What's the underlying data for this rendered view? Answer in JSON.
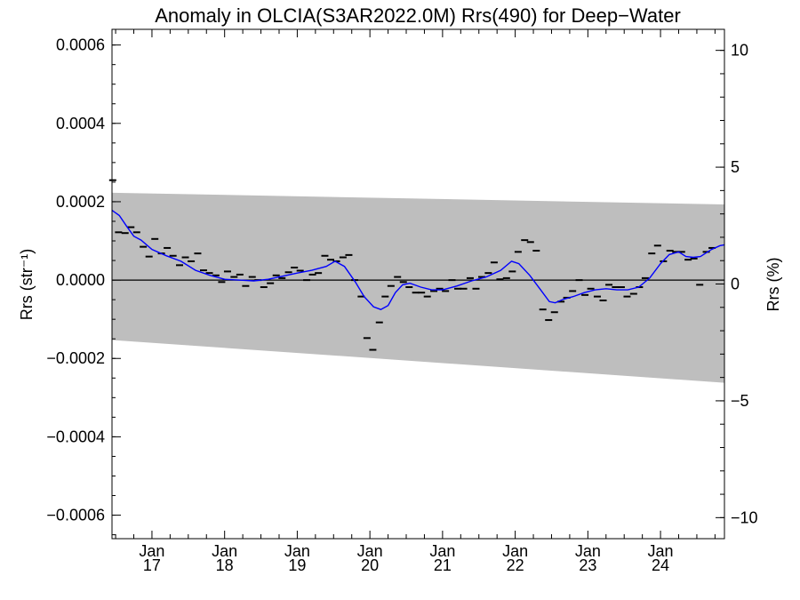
{
  "chart_data": {
    "type": "line",
    "title": "Anomaly in OLCIA(S3AR2022.0M) Rrs(490) for Deep−Water",
    "ylabel_left": "Rrs (str⁻¹)",
    "ylabel_right": "Rrs (%)",
    "xlim": [
      2016.45,
      2024.88
    ],
    "ylim_left": [
      -0.00066,
      0.00064
    ],
    "ylim_right": [
      -10.9,
      10.9
    ],
    "x_ticks": [
      {
        "x": 2017.0,
        "line1": "Jan",
        "line2": "17"
      },
      {
        "x": 2018.0,
        "line1": "Jan",
        "line2": "18"
      },
      {
        "x": 2019.0,
        "line1": "Jan",
        "line2": "19"
      },
      {
        "x": 2020.0,
        "line1": "Jan",
        "line2": "20"
      },
      {
        "x": 2021.0,
        "line1": "Jan",
        "line2": "21"
      },
      {
        "x": 2022.0,
        "line1": "Jan",
        "line2": "22"
      },
      {
        "x": 2023.0,
        "line1": "Jan",
        "line2": "23"
      },
      {
        "x": 2024.0,
        "line1": "Jan",
        "line2": "24"
      }
    ],
    "y_ticks_left": [
      {
        "v": 0.0006,
        "label": "0.0006"
      },
      {
        "v": 0.0004,
        "label": "0.0004"
      },
      {
        "v": 0.0002,
        "label": "0.0002"
      },
      {
        "v": 0.0,
        "label": "0.0000"
      },
      {
        "v": -0.0002,
        "label": "−0.0002"
      },
      {
        "v": -0.0004,
        "label": "−0.0004"
      },
      {
        "v": -0.0006,
        "label": "−0.0006"
      }
    ],
    "y_ticks_right": [
      {
        "v": 10,
        "label": "10"
      },
      {
        "v": 5,
        "label": "5"
      },
      {
        "v": 0,
        "label": "0"
      },
      {
        "v": -5,
        "label": "−5"
      },
      {
        "v": -10,
        "label": "−10"
      }
    ],
    "band": {
      "x": [
        2016.45,
        2024.88
      ],
      "upper": [
        0.000223,
        0.000193
      ],
      "lower": [
        -0.000153,
        -0.000262
      ],
      "color": "#bebebe"
    },
    "zero_line": true,
    "series": [
      {
        "kind": "monthly-anomaly",
        "color": "#000000",
        "points": [
          [
            2016.46,
            0.000255
          ],
          [
            2016.54,
            0.000122
          ],
          [
            2016.63,
            0.00012
          ],
          [
            2016.71,
            0.000135
          ],
          [
            2016.79,
            0.000122
          ],
          [
            2016.88,
            8.5e-05
          ],
          [
            2016.96,
            6e-05
          ],
          [
            2017.04,
            0.000105
          ],
          [
            2017.13,
            6.8e-05
          ],
          [
            2017.21,
            8.2e-05
          ],
          [
            2017.29,
            6.2e-05
          ],
          [
            2017.38,
            3.8e-05
          ],
          [
            2017.46,
            5.8e-05
          ],
          [
            2017.54,
            4.8e-05
          ],
          [
            2017.63,
            6.8e-05
          ],
          [
            2017.71,
            2.5e-05
          ],
          [
            2017.79,
            1.8e-05
          ],
          [
            2017.88,
            1.2e-05
          ],
          [
            2017.96,
            -5e-06
          ],
          [
            2018.04,
            2.2e-05
          ],
          [
            2018.13,
            8e-06
          ],
          [
            2018.21,
            1.4e-05
          ],
          [
            2018.29,
            -1.5e-05
          ],
          [
            2018.38,
            8e-06
          ],
          [
            2018.46,
            0.0
          ],
          [
            2018.54,
            -1.8e-05
          ],
          [
            2018.63,
            -8e-06
          ],
          [
            2018.71,
            1.2e-05
          ],
          [
            2018.79,
            5e-06
          ],
          [
            2018.88,
            2e-05
          ],
          [
            2018.96,
            3.2e-05
          ],
          [
            2019.04,
            2.4e-05
          ],
          [
            2019.13,
            0.0
          ],
          [
            2019.21,
            1.4e-05
          ],
          [
            2019.29,
            1.8e-05
          ],
          [
            2019.38,
            6.2e-05
          ],
          [
            2019.46,
            5.2e-05
          ],
          [
            2019.54,
            4.8e-05
          ],
          [
            2019.63,
            5.8e-05
          ],
          [
            2019.71,
            6.4e-05
          ],
          [
            2019.79,
            0.0
          ],
          [
            2019.88,
            -4.2e-05
          ],
          [
            2019.96,
            -0.000148
          ],
          [
            2020.04,
            -0.000178
          ],
          [
            2020.13,
            -0.000108
          ],
          [
            2020.21,
            -4.2e-05
          ],
          [
            2020.29,
            -1.5e-05
          ],
          [
            2020.38,
            8e-06
          ],
          [
            2020.46,
            -5e-06
          ],
          [
            2020.54,
            -1.8e-05
          ],
          [
            2020.63,
            -3.2e-05
          ],
          [
            2020.71,
            -3.2e-05
          ],
          [
            2020.79,
            -4.2e-05
          ],
          [
            2020.88,
            -2.8e-05
          ],
          [
            2020.96,
            -2.2e-05
          ],
          [
            2021.04,
            -2.8e-05
          ],
          [
            2021.13,
            0.0
          ],
          [
            2021.21,
            -2.2e-05
          ],
          [
            2021.29,
            -2.2e-05
          ],
          [
            2021.38,
            5e-06
          ],
          [
            2021.46,
            -2.2e-05
          ],
          [
            2021.54,
            8e-06
          ],
          [
            2021.63,
            1.8e-05
          ],
          [
            2021.71,
            4.5e-05
          ],
          [
            2021.79,
            2e-06
          ],
          [
            2021.88,
            5e-06
          ],
          [
            2021.96,
            2.2e-05
          ],
          [
            2022.04,
            7.2e-05
          ],
          [
            2022.13,
            0.000102
          ],
          [
            2022.21,
            9.7e-05
          ],
          [
            2022.29,
            7.5e-05
          ],
          [
            2022.38,
            -7.5e-05
          ],
          [
            2022.46,
            -0.000102
          ],
          [
            2022.54,
            -8.2e-05
          ],
          [
            2022.63,
            -5.5e-05
          ],
          [
            2022.71,
            -4.5e-05
          ],
          [
            2022.79,
            -2.8e-05
          ],
          [
            2022.88,
            0.0
          ],
          [
            2022.96,
            -3.8e-05
          ],
          [
            2023.04,
            -2.2e-05
          ],
          [
            2023.13,
            -4.2e-05
          ],
          [
            2023.21,
            -5.2e-05
          ],
          [
            2023.29,
            -1.2e-05
          ],
          [
            2023.38,
            -1.8e-05
          ],
          [
            2023.46,
            -1.8e-05
          ],
          [
            2023.54,
            -4.2e-05
          ],
          [
            2023.63,
            -3.5e-05
          ],
          [
            2023.71,
            -1.8e-05
          ],
          [
            2023.79,
            5e-06
          ],
          [
            2023.88,
            6.8e-05
          ],
          [
            2023.96,
            8.8e-05
          ],
          [
            2024.04,
            4.8e-05
          ],
          [
            2024.13,
            7.5e-05
          ],
          [
            2024.21,
            7.2e-05
          ],
          [
            2024.29,
            7.2e-05
          ],
          [
            2024.38,
            5.2e-05
          ],
          [
            2024.46,
            5.5e-05
          ],
          [
            2024.54,
            -1.2e-05
          ],
          [
            2024.63,
            7.2e-05
          ],
          [
            2024.71,
            8.2e-05
          ]
        ]
      },
      {
        "kind": "running-mean",
        "color": "#0000ff",
        "points": [
          [
            2016.45,
            0.000178
          ],
          [
            2016.55,
            0.000165
          ],
          [
            2016.65,
            0.000138
          ],
          [
            2016.75,
            0.000112
          ],
          [
            2016.85,
            0.000102
          ],
          [
            2017.0,
            7.8e-05
          ],
          [
            2017.2,
            6.2e-05
          ],
          [
            2017.4,
            4.8e-05
          ],
          [
            2017.6,
            2.5e-05
          ],
          [
            2017.8,
            1.2e-05
          ],
          [
            2018.0,
            2e-06
          ],
          [
            2018.2,
            0.0
          ],
          [
            2018.4,
            -2e-06
          ],
          [
            2018.6,
            2e-06
          ],
          [
            2018.8,
            1e-05
          ],
          [
            2019.0,
            1.8e-05
          ],
          [
            2019.2,
            2.5e-05
          ],
          [
            2019.4,
            3.5e-05
          ],
          [
            2019.52,
            4.8e-05
          ],
          [
            2019.65,
            3.5e-05
          ],
          [
            2019.8,
            -5e-06
          ],
          [
            2019.92,
            -4.2e-05
          ],
          [
            2020.05,
            -6.8e-05
          ],
          [
            2020.15,
            -7.5e-05
          ],
          [
            2020.25,
            -6.5e-05
          ],
          [
            2020.35,
            -3.2e-05
          ],
          [
            2020.45,
            -1.2e-05
          ],
          [
            2020.55,
            -8e-06
          ],
          [
            2020.7,
            -1.8e-05
          ],
          [
            2020.85,
            -2.5e-05
          ],
          [
            2021.0,
            -2.5e-05
          ],
          [
            2021.2,
            -1.5e-05
          ],
          [
            2021.4,
            -2e-06
          ],
          [
            2021.6,
            8e-06
          ],
          [
            2021.8,
            2.5e-05
          ],
          [
            2021.95,
            4.8e-05
          ],
          [
            2022.05,
            4.2e-05
          ],
          [
            2022.2,
            1.2e-05
          ],
          [
            2022.35,
            -2.5e-05
          ],
          [
            2022.47,
            -5.5e-05
          ],
          [
            2022.55,
            -5.8e-05
          ],
          [
            2022.65,
            -5e-05
          ],
          [
            2022.8,
            -4.2e-05
          ],
          [
            2022.95,
            -3.2e-05
          ],
          [
            2023.1,
            -2.5e-05
          ],
          [
            2023.25,
            -2.2e-05
          ],
          [
            2023.4,
            -2.5e-05
          ],
          [
            2023.55,
            -2.5e-05
          ],
          [
            2023.7,
            -1.8e-05
          ],
          [
            2023.85,
            5e-06
          ],
          [
            2024.0,
            4.2e-05
          ],
          [
            2024.12,
            6.5e-05
          ],
          [
            2024.25,
            7.2e-05
          ],
          [
            2024.35,
            6e-05
          ],
          [
            2024.45,
            5.8e-05
          ],
          [
            2024.55,
            6e-05
          ],
          [
            2024.7,
            7.8e-05
          ],
          [
            2024.82,
            8.8e-05
          ],
          [
            2024.88,
            9e-05
          ]
        ]
      }
    ]
  }
}
